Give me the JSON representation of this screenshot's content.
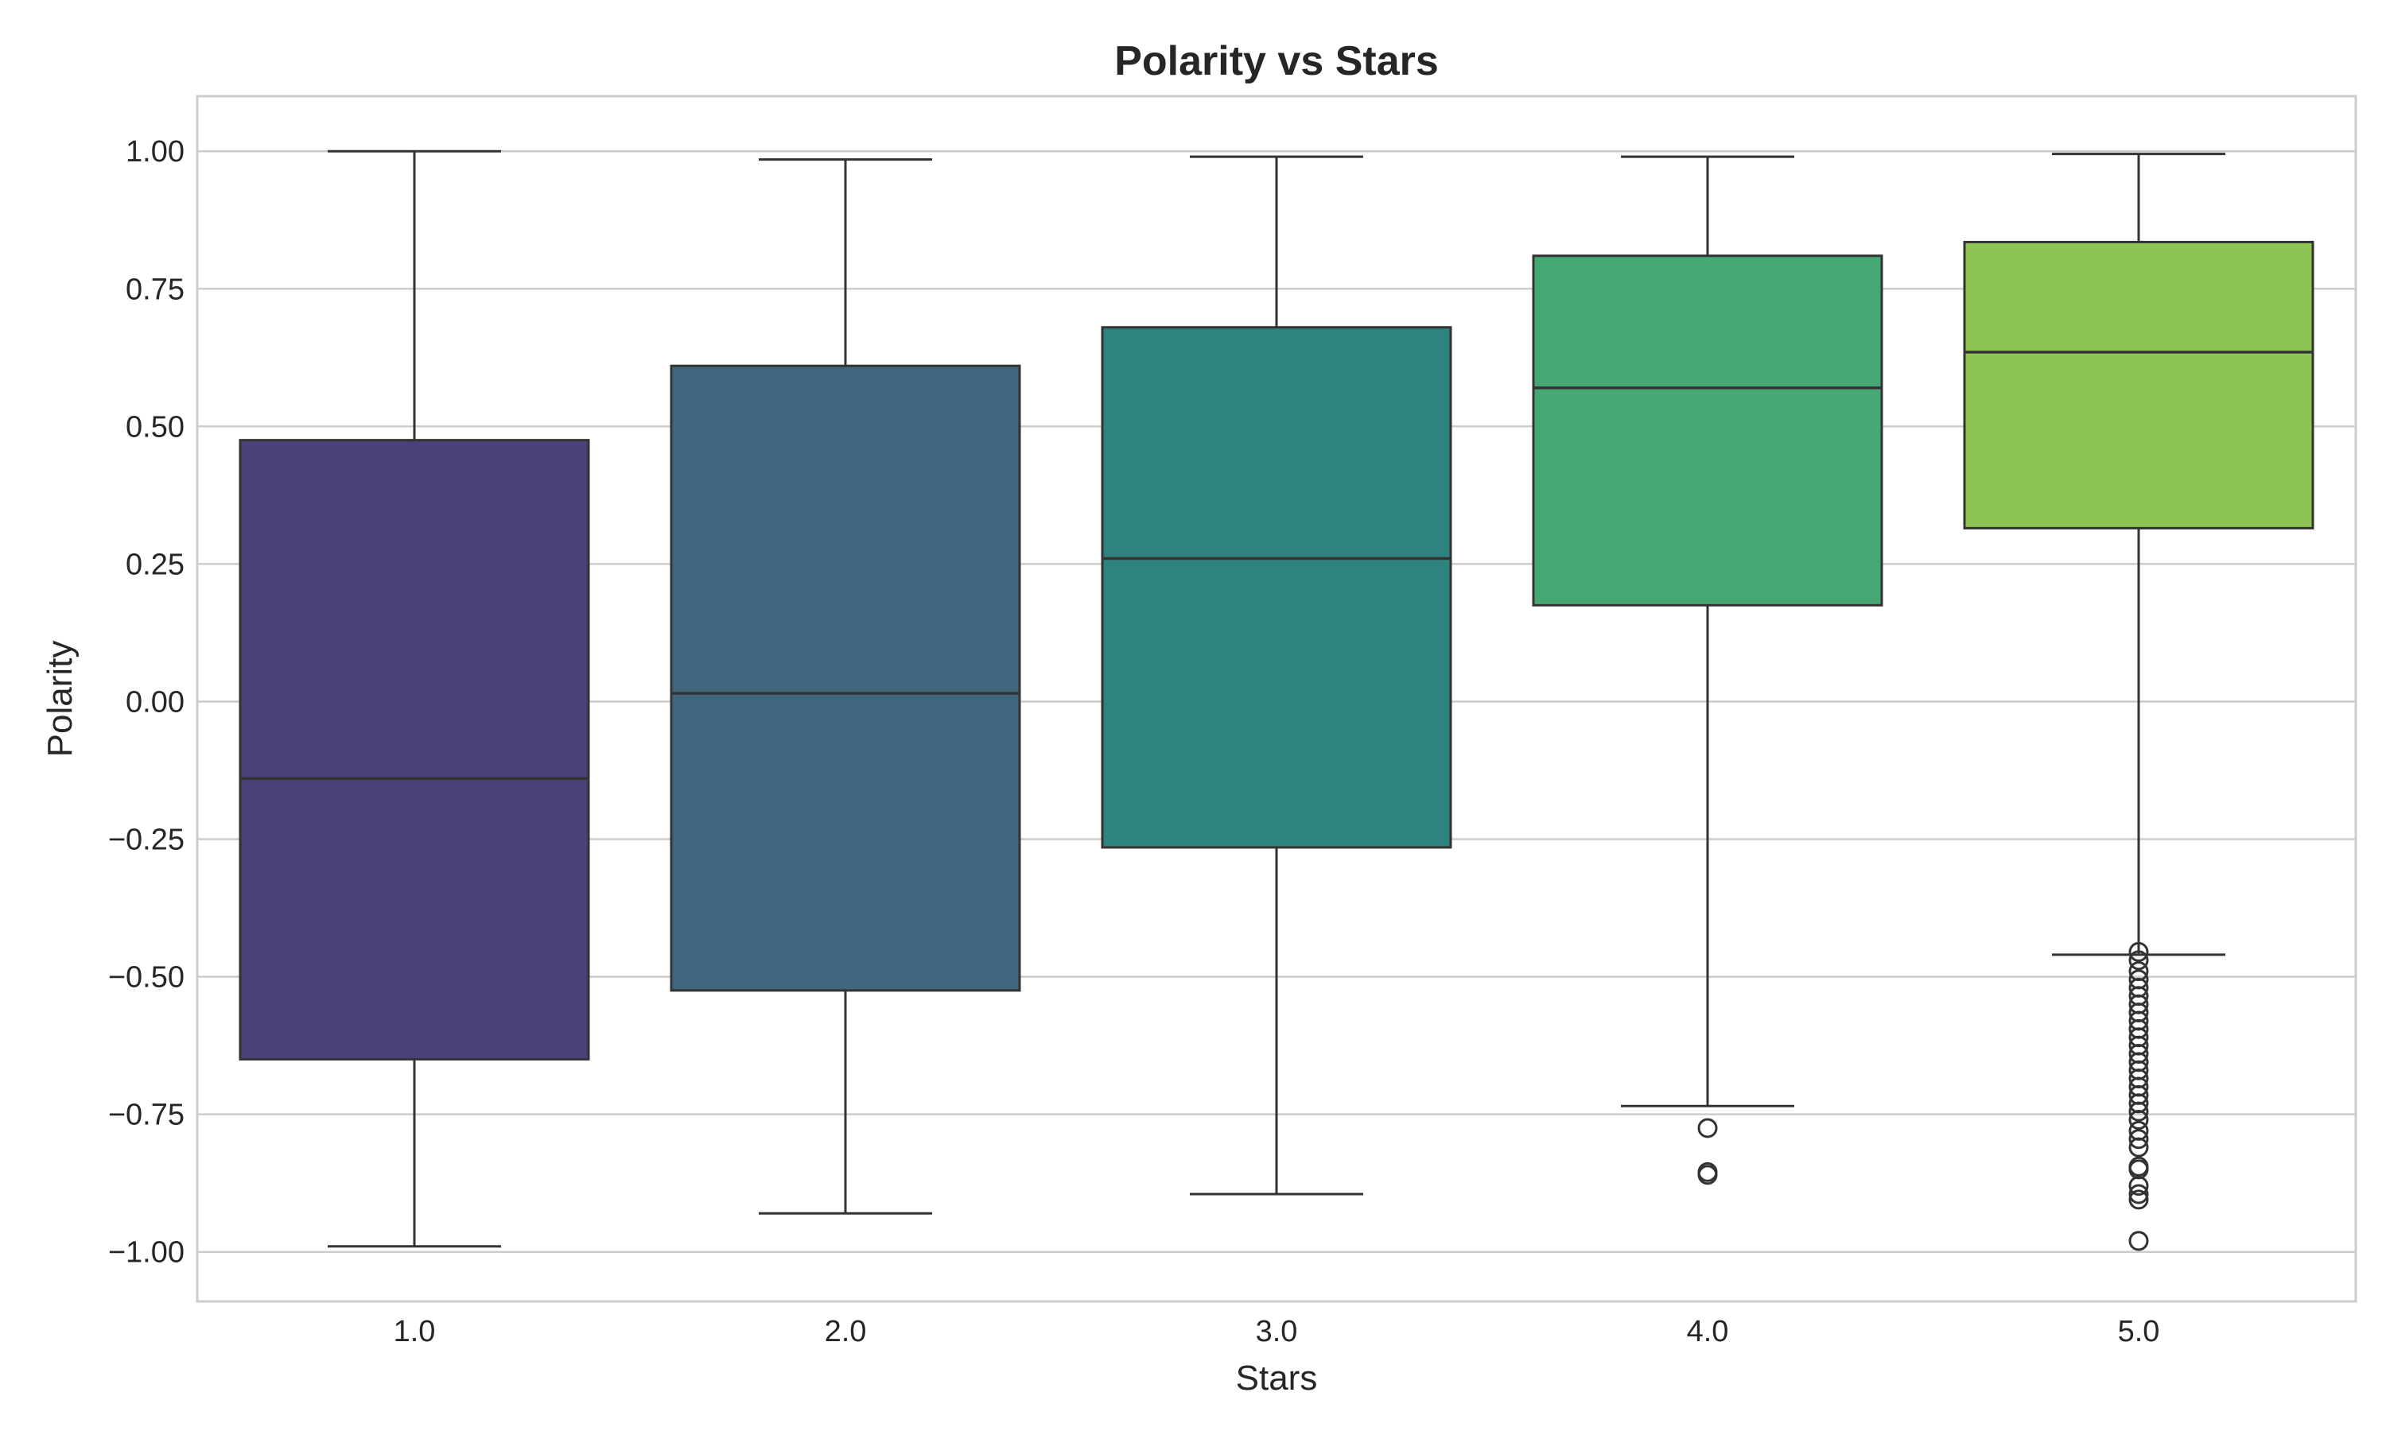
{
  "chart_data": {
    "type": "box",
    "title": "Polarity vs Stars",
    "xlabel": "Stars",
    "ylabel": "Polarity",
    "categories": [
      "1.0",
      "2.0",
      "3.0",
      "4.0",
      "5.0"
    ],
    "ylim": [
      -1.09,
      1.1
    ],
    "yticks": [
      1.0,
      0.75,
      0.5,
      0.25,
      0.0,
      -0.25,
      -0.5,
      -0.75,
      -1.0
    ],
    "ytick_labels": [
      "1.00",
      "0.75",
      "0.50",
      "0.25",
      "0.00",
      "−0.25",
      "−0.50",
      "−0.75",
      "−1.00"
    ],
    "grid": true,
    "boxes": [
      {
        "category": "1.0",
        "whisker_low": -0.99,
        "q1": -0.65,
        "median": -0.14,
        "q3": 0.475,
        "whisker_high": 1.0,
        "color": "#4a417a",
        "outliers": []
      },
      {
        "category": "2.0",
        "whisker_low": -0.93,
        "q1": -0.525,
        "median": 0.015,
        "q3": 0.61,
        "whisker_high": 0.985,
        "color": "#3f677f",
        "outliers": []
      },
      {
        "category": "3.0",
        "whisker_low": -0.895,
        "q1": -0.265,
        "median": 0.26,
        "q3": 0.68,
        "whisker_high": 0.99,
        "color": "#2e837e",
        "outliers": []
      },
      {
        "category": "4.0",
        "whisker_low": -0.735,
        "q1": 0.175,
        "median": 0.57,
        "q3": 0.81,
        "whisker_high": 0.99,
        "color": "#47a876",
        "outliers": [
          -0.775,
          -0.855,
          -0.86
        ]
      },
      {
        "category": "5.0",
        "whisker_low": -0.46,
        "q1": 0.315,
        "median": 0.635,
        "q3": 0.835,
        "whisker_high": 0.995,
        "color": "#8dc453",
        "outliers": [
          -0.455,
          -0.47,
          -0.49,
          -0.505,
          -0.52,
          -0.535,
          -0.55,
          -0.565,
          -0.58,
          -0.595,
          -0.61,
          -0.625,
          -0.64,
          -0.655,
          -0.67,
          -0.685,
          -0.7,
          -0.715,
          -0.73,
          -0.745,
          -0.76,
          -0.78,
          -0.795,
          -0.81,
          -0.845,
          -0.85,
          -0.88,
          -0.895,
          -0.905,
          -0.98
        ]
      }
    ]
  }
}
